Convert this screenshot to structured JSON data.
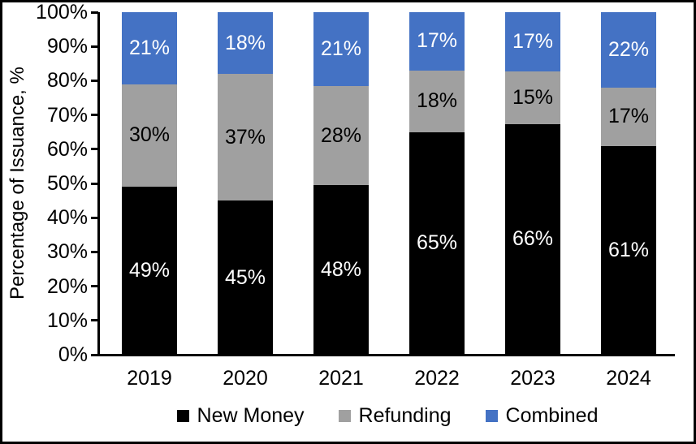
{
  "chart_data": {
    "type": "bar",
    "variant": "stacked-100-percent",
    "title": "",
    "xlabel": "",
    "ylabel": "Percentage of Issuance, %",
    "categories": [
      "2019",
      "2020",
      "2021",
      "2022",
      "2023",
      "2024"
    ],
    "series": [
      {
        "name": "New Money",
        "color": "#000000",
        "label_color": "#FFFFFF",
        "values": [
          49,
          45,
          48,
          65,
          66,
          61
        ],
        "labels": [
          "49%",
          "45%",
          "48%",
          "65%",
          "66%",
          "61%"
        ]
      },
      {
        "name": "Refunding",
        "color": "#A0A0A0",
        "label_color": "#000000",
        "values": [
          30,
          37,
          28,
          18,
          15,
          17
        ],
        "labels": [
          "30%",
          "37%",
          "28%",
          "18%",
          "15%",
          "17%"
        ]
      },
      {
        "name": "Combined",
        "color": "#4472C4",
        "label_color": "#FFFFFF",
        "values": [
          21,
          18,
          21,
          17,
          17,
          22
        ],
        "labels": [
          "21%",
          "18%",
          "21%",
          "17%",
          "17%",
          "22%"
        ]
      }
    ],
    "yticks": [
      "100%",
      "90%",
      "80%",
      "70%",
      "60%",
      "50%",
      "40%",
      "30%",
      "20%",
      "10%",
      "0%"
    ],
    "ytick_values": [
      100,
      90,
      80,
      70,
      60,
      50,
      40,
      30,
      20,
      10,
      0
    ],
    "ylim": [
      0,
      100
    ],
    "grid": false,
    "legend_position": "bottom",
    "axis_color": "#000000",
    "background_color": "#FFFFFF",
    "border_color": "#000000"
  }
}
